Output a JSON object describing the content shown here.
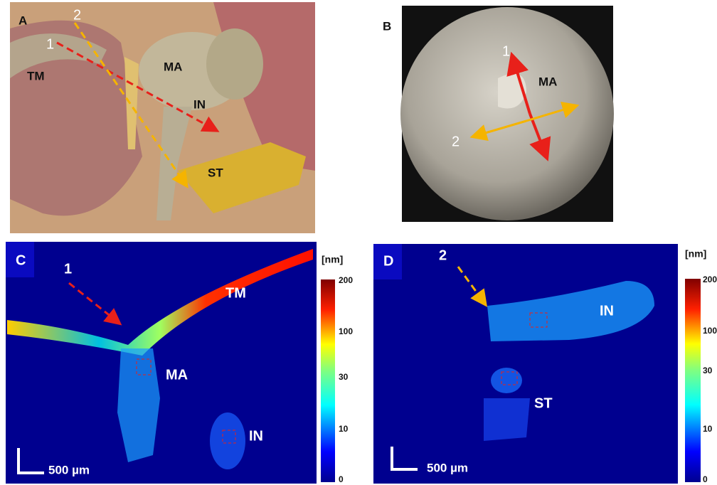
{
  "panel_a": {
    "label": "A",
    "arrow_1": "1",
    "arrow_2": "2",
    "structures": [
      "TM",
      "MA",
      "IN",
      "ST"
    ]
  },
  "panel_b": {
    "label": "B",
    "arrow_1": "1",
    "arrow_2": "2",
    "structures": [
      "MA"
    ]
  },
  "panel_c": {
    "label": "C",
    "arrow": "1",
    "structures": [
      "TM",
      "MA",
      "IN"
    ],
    "scale_bar": "500 µm",
    "colorbar": {
      "unit": "[nm]",
      "ticks": [
        200,
        100,
        30,
        10,
        0
      ]
    }
  },
  "panel_d": {
    "label": "D",
    "arrow": "2",
    "structures": [
      "IN",
      "ST"
    ],
    "scale_bar": "500 µm",
    "colorbar": {
      "unit": "[nm]",
      "ticks": [
        200,
        100,
        30,
        10,
        0
      ]
    }
  }
}
